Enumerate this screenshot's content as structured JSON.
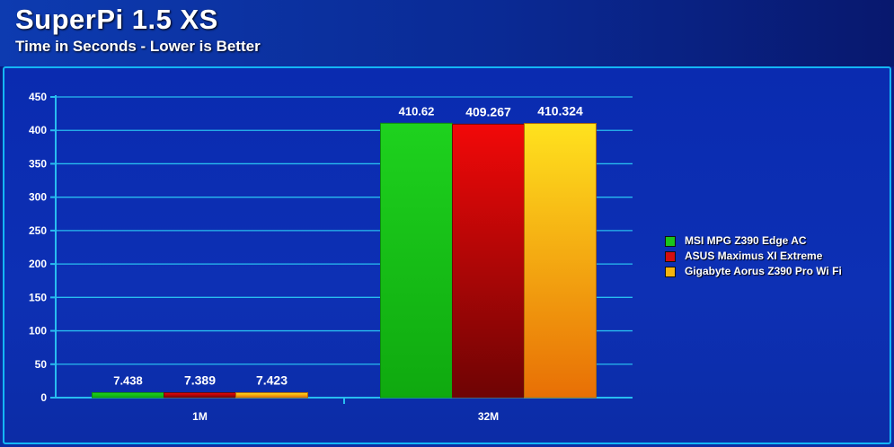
{
  "chart_data": {
    "type": "bar",
    "title": "SuperPi 1.5 XS",
    "subtitle": "Time in Seconds - Lower is Better",
    "categories": [
      "1M",
      "32M"
    ],
    "series": [
      {
        "name": "MSI MPG Z390 Edge AC",
        "values": [
          7.438,
          410.62
        ],
        "labels": [
          "7.438",
          "410.62"
        ],
        "color": "#1bc41b"
      },
      {
        "name": "ASUS Maximus XI Extreme",
        "values": [
          7.389,
          409.267
        ],
        "labels": [
          "7.389",
          "409.267"
        ],
        "color": "#d40e0e"
      },
      {
        "name": "Gigabyte Aorus Z390 Pro Wi Fi",
        "values": [
          7.423,
          410.324
        ],
        "labels": [
          "7.423",
          "410.324"
        ],
        "color": "#f5b40f"
      }
    ],
    "ylim": [
      0,
      450
    ],
    "yticks": [
      0,
      50,
      100,
      150,
      200,
      250,
      300,
      350,
      400,
      450
    ],
    "grid": true,
    "legend": "right",
    "xlabel": "",
    "ylabel": ""
  }
}
